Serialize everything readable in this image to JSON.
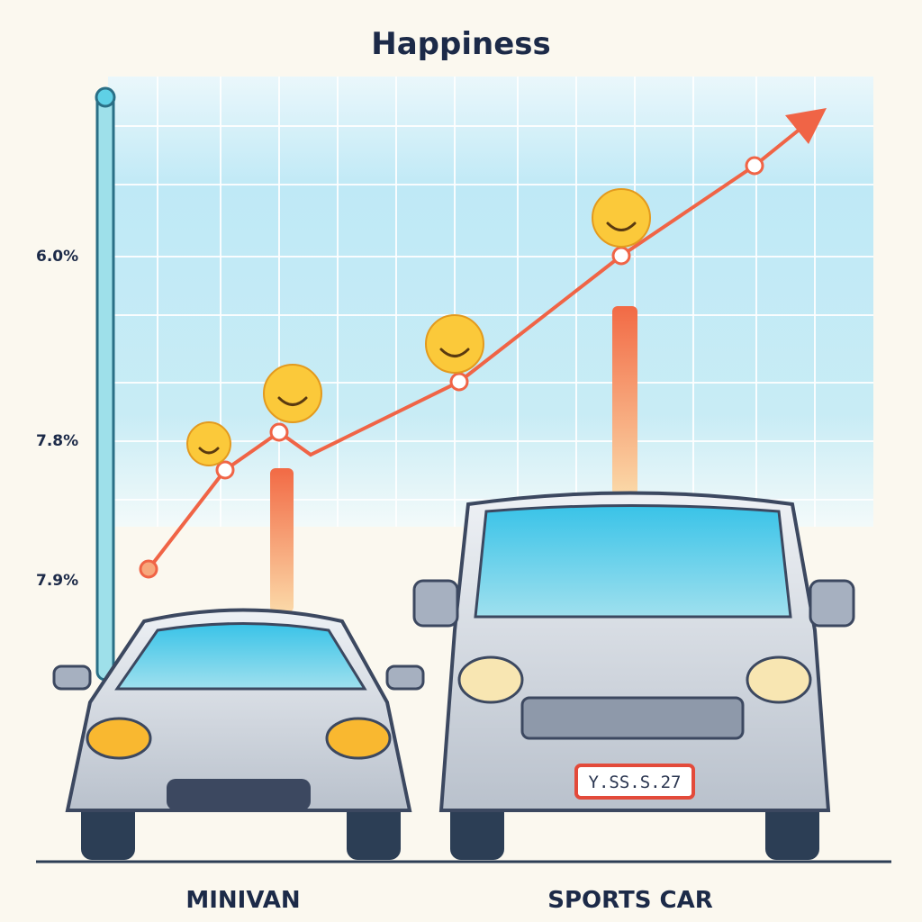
{
  "title": "Happiness",
  "axis_labels": [
    "6.0%",
    "7.8%",
    "7.9%"
  ],
  "car_labels": [
    "MINIVAN",
    "SPORTS CAR"
  ],
  "license_plate": "Y.SS.S.27"
}
